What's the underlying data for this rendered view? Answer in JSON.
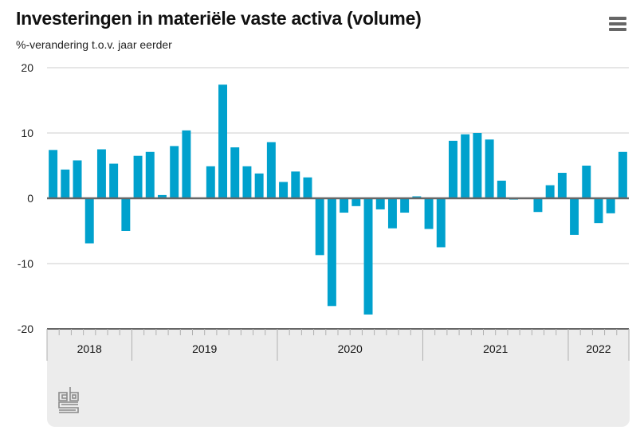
{
  "header": {
    "title": "Investeringen in materiële vaste activa (volume)",
    "subtitle": "%-verandering t.o.v. jaar eerder",
    "menu_icon": "hamburger-menu-icon"
  },
  "footer": {
    "logo": "cbs-logo"
  },
  "colors": {
    "bar": "#00a1cd",
    "zero_line": "#666666",
    "grid": "#cccccc",
    "footer_bg": "#ececec"
  },
  "chart_data": {
    "type": "bar",
    "title": "Investeringen in materiële vaste activa (volume)",
    "subtitle": "%-verandering t.o.v. jaar eerder",
    "xlabel": "",
    "ylabel": "%-verandering t.o.v. jaar eerder",
    "ylim": [
      -20,
      20
    ],
    "yticks": [
      20,
      10,
      0,
      -10,
      -20
    ],
    "grid": true,
    "legend": "none",
    "year_groups": [
      {
        "label": "2018",
        "months": 7
      },
      {
        "label": "2019",
        "months": 12
      },
      {
        "label": "2020",
        "months": 12
      },
      {
        "label": "2021",
        "months": 12
      },
      {
        "label": "2022",
        "months": 5
      }
    ],
    "categories": [
      "2018-06",
      "2018-07",
      "2018-08",
      "2018-09",
      "2018-10",
      "2018-11",
      "2018-12",
      "2019-01",
      "2019-02",
      "2019-03",
      "2019-04",
      "2019-05",
      "2019-06",
      "2019-07",
      "2019-08",
      "2019-09",
      "2019-10",
      "2019-11",
      "2019-12",
      "2020-01",
      "2020-02",
      "2020-03",
      "2020-04",
      "2020-05",
      "2020-06",
      "2020-07",
      "2020-08",
      "2020-09",
      "2020-10",
      "2020-11",
      "2020-12",
      "2021-01",
      "2021-02",
      "2021-03",
      "2021-04",
      "2021-05",
      "2021-06",
      "2021-07",
      "2021-08",
      "2021-09",
      "2021-10",
      "2021-11",
      "2021-12",
      "2022-01",
      "2022-02",
      "2022-03",
      "2022-04",
      "2022-05"
    ],
    "values": [
      7.4,
      4.4,
      5.8,
      -6.9,
      7.5,
      5.3,
      -5.0,
      6.5,
      7.1,
      0.5,
      8.0,
      10.4,
      0.0,
      4.9,
      17.4,
      7.8,
      4.9,
      3.8,
      8.6,
      2.5,
      4.1,
      3.2,
      -8.7,
      -16.5,
      -2.2,
      -1.2,
      -17.8,
      -1.7,
      -4.6,
      -2.2,
      0.3,
      -4.7,
      -7.5,
      8.8,
      9.8,
      10.0,
      9.0,
      2.7,
      -0.2,
      0.0,
      -2.1,
      2.0,
      3.9,
      -5.6,
      5.0,
      -3.8,
      -2.3,
      7.1
    ]
  }
}
